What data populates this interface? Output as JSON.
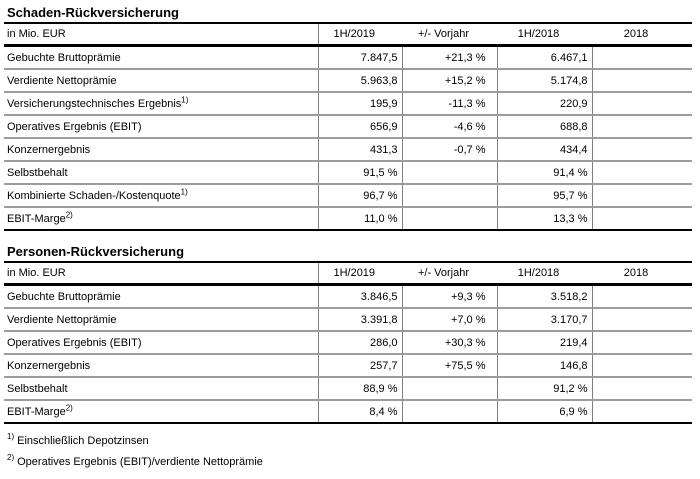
{
  "colors": {
    "background": "#ffffff",
    "text": "#000000",
    "strong_line": "#000000",
    "row_grid_line": "#9c9c9c",
    "column_divider": "#7f7f7f"
  },
  "sections": [
    {
      "title": "Schaden-Rückversicherung",
      "unit_label": "in Mio. EUR",
      "columns": [
        "1H/2019",
        "+/- Vorjahr",
        "1H/2018",
        "2018"
      ],
      "rows": [
        {
          "label": "Gebuchte Bruttoprämie",
          "sup": "",
          "values": [
            "7.847,5",
            "+21,3 %",
            "6.467,1",
            ""
          ]
        },
        {
          "label": "Verdiente Nettoprämie",
          "sup": "",
          "values": [
            "5.963,8",
            "+15,2 %",
            "5.174,8",
            ""
          ]
        },
        {
          "label": "Versicherungstechnisches Ergebnis",
          "sup": "1)",
          "values": [
            "195,9",
            "-11,3 %",
            "220,9",
            ""
          ]
        },
        {
          "label": "Operatives Ergebnis (EBIT)",
          "sup": "",
          "values": [
            "656,9",
            "-4,6 %",
            "688,8",
            ""
          ]
        },
        {
          "label": "Konzernergebnis",
          "sup": "",
          "values": [
            "431,3",
            "-0,7 %",
            "434,4",
            ""
          ]
        },
        {
          "label": "Selbstbehalt",
          "sup": "",
          "values": [
            "91,5 %",
            "",
            "91,4 %",
            ""
          ]
        },
        {
          "label": "Kombinierte Schaden-/Kostenquote",
          "sup": "1)",
          "values": [
            "96,7 %",
            "",
            "95,7 %",
            ""
          ]
        },
        {
          "label": "EBIT-Marge",
          "sup": "2)",
          "values": [
            "11,0 %",
            "",
            "13,3 %",
            ""
          ]
        }
      ]
    },
    {
      "title": "Personen-Rückversicherung",
      "unit_label": "in Mio. EUR",
      "columns": [
        "1H/2019",
        "+/- Vorjahr",
        "1H/2018",
        "2018"
      ],
      "rows": [
        {
          "label": "Gebuchte Bruttoprämie",
          "sup": "",
          "values": [
            "3.846,5",
            "+9,3 %",
            "3.518,2",
            ""
          ]
        },
        {
          "label": "Verdiente Nettoprämie",
          "sup": "",
          "values": [
            "3.391,8",
            "+7,0 %",
            "3.170,7",
            ""
          ]
        },
        {
          "label": "Operatives Ergebnis (EBIT)",
          "sup": "",
          "values": [
            "286,0",
            "+30,3 %",
            "219,4",
            ""
          ]
        },
        {
          "label": "Konzernergebnis",
          "sup": "",
          "values": [
            "257,7",
            "+75,5 %",
            "146,8",
            ""
          ]
        },
        {
          "label": "Selbstbehalt",
          "sup": "",
          "values": [
            "88,9 %",
            "",
            "91,2 %",
            ""
          ]
        },
        {
          "label": "EBIT-Marge",
          "sup": "2)",
          "values": [
            "8,4 %",
            "",
            "6,9 %",
            ""
          ]
        }
      ]
    }
  ],
  "footnotes": [
    {
      "marker": "1)",
      "text": "Einschließlich Depotzinsen"
    },
    {
      "marker": "2)",
      "text": "Operatives Ergebnis (EBIT)/verdiente Nettoprämie"
    }
  ]
}
